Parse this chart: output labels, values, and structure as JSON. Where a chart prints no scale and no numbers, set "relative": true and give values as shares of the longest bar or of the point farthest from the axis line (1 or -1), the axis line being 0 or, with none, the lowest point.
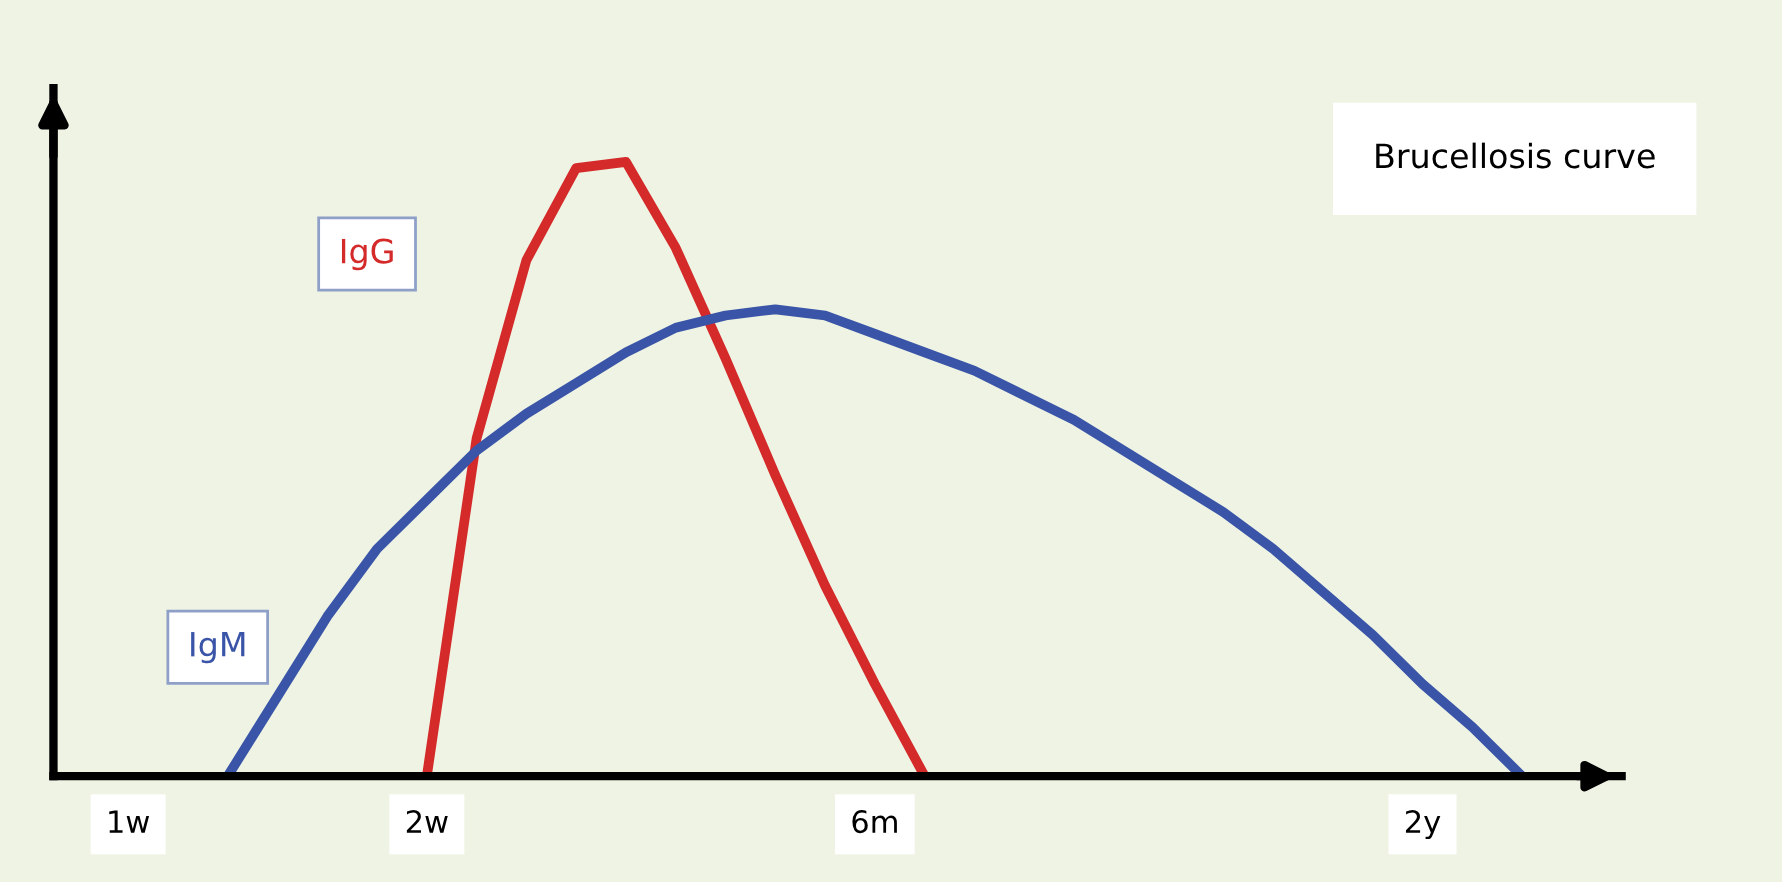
{
  "chart_data": {
    "type": "line",
    "title": "Brucellosis curve",
    "relative": true,
    "legend": false,
    "grid": false,
    "marker": "none",
    "line_style": "solid",
    "categories": [
      null,
      "1w",
      null,
      null,
      null,
      null,
      null,
      "2w",
      null,
      null,
      null,
      null,
      null,
      null,
      null,
      null,
      "6m",
      null,
      null,
      null,
      null,
      null,
      null,
      null,
      null,
      null,
      null,
      "2y",
      null,
      null,
      null
    ],
    "series": [
      {
        "name": "IgG",
        "color": "#d42a2a",
        "values": [
          null,
          null,
          null,
          null,
          null,
          null,
          null,
          0,
          0.55,
          0.84,
          0.99,
          1.0,
          0.86,
          0.68,
          0.49,
          0.31,
          0.15,
          0,
          null,
          null,
          null,
          null,
          null,
          null,
          null,
          null,
          null,
          null,
          null,
          null,
          null
        ]
      },
      {
        "name": "IgM",
        "color": "#3a55a8",
        "values": [
          null,
          null,
          null,
          0,
          0.13,
          0.26,
          0.37,
          0.45,
          0.53,
          0.59,
          0.64,
          0.69,
          0.73,
          0.75,
          0.76,
          0.75,
          0.72,
          0.69,
          0.66,
          0.62,
          0.58,
          0.53,
          0.48,
          0.43,
          0.37,
          0.3,
          0.23,
          0.15,
          0.08,
          0,
          null
        ]
      }
    ]
  }
}
